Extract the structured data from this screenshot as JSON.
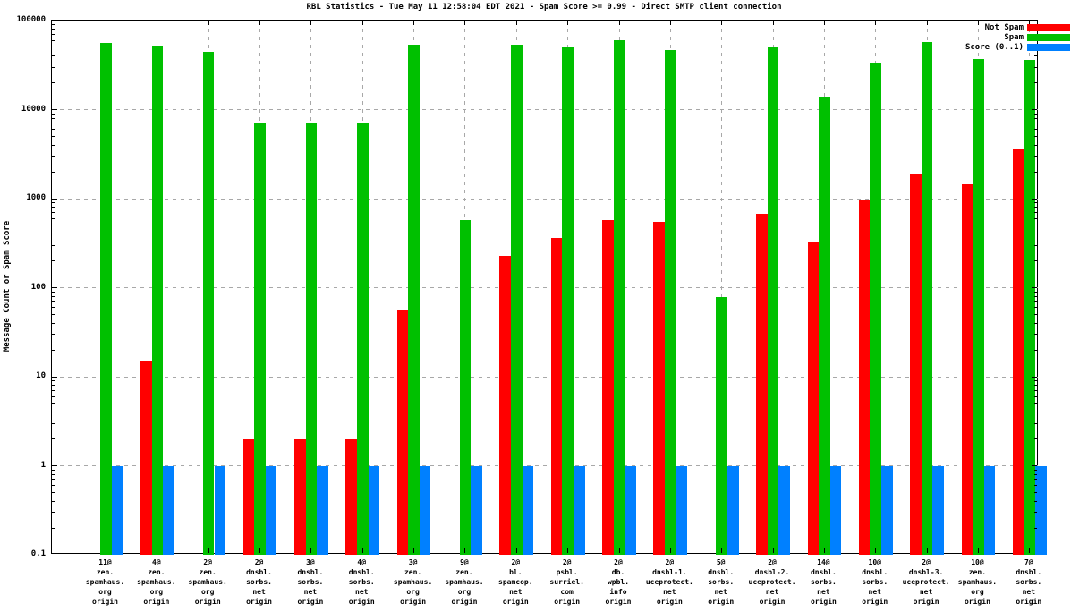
{
  "chart_data": {
    "type": "bar",
    "title": "RBL Statistics - Tue May 11 12:58:04 EDT 2021 - Spam Score >= 0.99 - Direct SMTP client connection",
    "ylabel": "Message Count or Spam Score",
    "yscale": "log",
    "ylim": [
      0.1,
      100000
    ],
    "ytick_values": [
      100000,
      10000,
      1000,
      100,
      10,
      1,
      0.1
    ],
    "ytick_labels": [
      "100000",
      "10000",
      "1000",
      "100",
      "10",
      "1",
      "0.1"
    ],
    "grid": true,
    "legend_position": "top-right",
    "categories": [
      "11@\nzen.\nspamhaus.\norg\norigin",
      "4@\nzen.\nspamhaus.\norg\norigin",
      "2@\nzen.\nspamhaus.\norg\norigin",
      "2@\ndnsbl.\nsorbs.\nnet\norigin",
      "3@\ndnsbl.\nsorbs.\nnet\norigin",
      "4@\ndnsbl.\nsorbs.\nnet\norigin",
      "3@\nzen.\nspamhaus.\norg\norigin",
      "9@\nzen.\nspamhaus.\norg\norigin",
      "2@\nbl.\nspamcop.\nnet\norigin",
      "2@\npsbl.\nsurriel.\ncom\norigin",
      "2@\ndb.\nwpbl.\ninfo\norigin",
      "2@\ndnsbl-1.\nuceprotect.\nnet\norigin",
      "5@\ndnsbl.\nsorbs.\nnet\norigin",
      "2@\ndnsbl-2.\nuceprotect.\nnet\norigin",
      "14@\ndnsbl.\nsorbs.\nnet\norigin",
      "10@\ndnsbl.\nsorbs.\nnet\norigin",
      "2@\ndnsbl-3.\nuceprotect.\nnet\norigin",
      "10@\nzen.\nspamhaus.\norg\norigin",
      "7@\ndnsbl.\nsorbs.\nnet\norigin"
    ],
    "series": [
      {
        "name": "Not Spam",
        "color": "#ff0000",
        "values": [
          null,
          15,
          null,
          2,
          2,
          2,
          57,
          null,
          230,
          360,
          570,
          550,
          null,
          670,
          320,
          950,
          1900,
          1450,
          3600
        ]
      },
      {
        "name": "Spam",
        "color": "#00c000",
        "values": [
          56000,
          52000,
          44000,
          7200,
          7100,
          7200,
          54000,
          580,
          54000,
          51000,
          60000,
          47000,
          78,
          51000,
          14000,
          34000,
          58000,
          37000,
          36000
        ]
      },
      {
        "name": "Score (0..1)",
        "color": "#0080ff",
        "values": [
          1,
          1,
          1,
          1,
          1,
          1,
          1,
          1,
          1,
          1,
          1,
          1,
          1,
          1,
          1,
          1,
          1,
          1,
          1
        ]
      }
    ]
  },
  "colors": {
    "grid": "#a8a8a8",
    "border": "#000000",
    "background": "#ffffff"
  }
}
